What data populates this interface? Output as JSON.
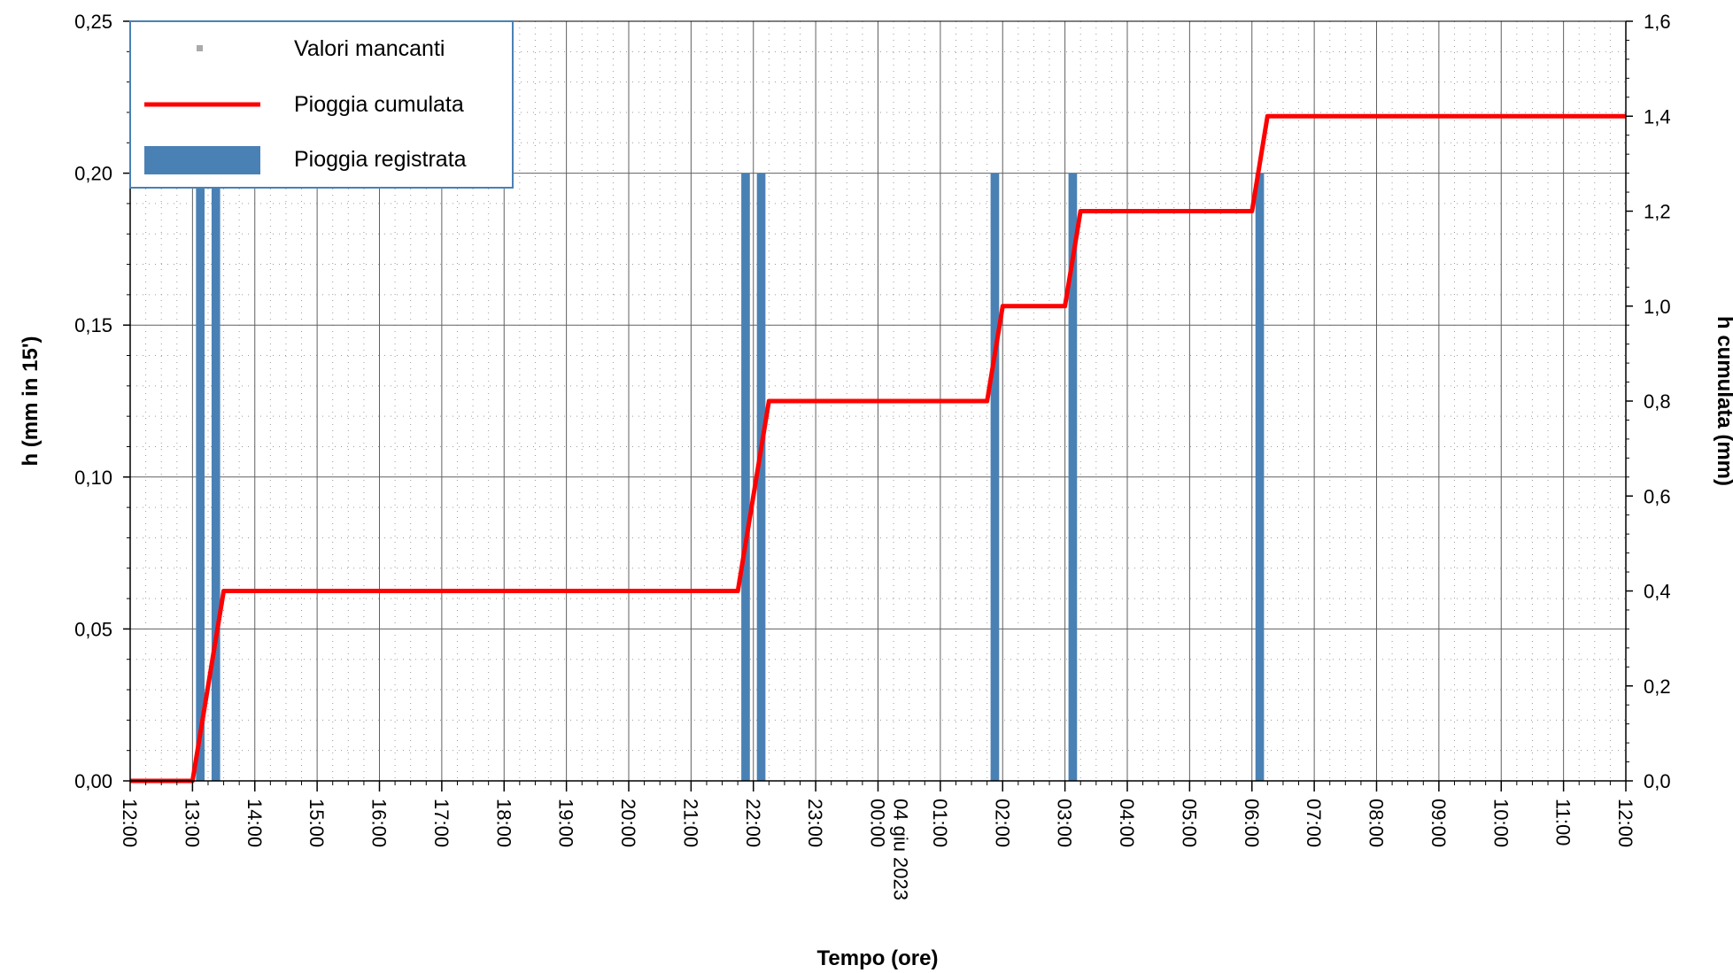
{
  "chart_data": {
    "type": "bar+line",
    "title": "",
    "xlabel": "Tempo (ore)",
    "ylabel_left": "h (mm in 15')",
    "ylabel_right": "h cumulata (mm)",
    "ylim_left": [
      0,
      0.25
    ],
    "ylim_right": [
      0,
      1.6
    ],
    "y_ticks_left": [
      "0,00",
      "0,05",
      "0,10",
      "0,15",
      "0,20",
      "0,25"
    ],
    "y_ticks_right": [
      "0,0",
      "0,2",
      "0,4",
      "0,6",
      "0,8",
      "1,0",
      "1,2",
      "1,4",
      "1,6"
    ],
    "x_tick_labels": [
      "12:00",
      "13:00",
      "14:00",
      "15:00",
      "16:00",
      "17:00",
      "18:00",
      "19:00",
      "20:00",
      "21:00",
      "22:00",
      "23:00",
      "04 giu 2023\n00:00",
      "01:00",
      "02:00",
      "03:00",
      "04:00",
      "05:00",
      "06:00",
      "07:00",
      "08:00",
      "09:00",
      "10:00",
      "11:00",
      "12:00"
    ],
    "x_range_hours": [
      0,
      24
    ],
    "grid": true,
    "legend_position": "top-left",
    "colors": {
      "bars": "#4a81b5",
      "line": "#ff0000",
      "missing": "#aaaaaa"
    },
    "series": [
      {
        "name": "Valori mancanti",
        "kind": "marker",
        "points": []
      },
      {
        "name": "Pioggia cumulata",
        "kind": "line",
        "axis": "right",
        "x_hours": [
          0,
          1,
          1.5,
          9.75,
          10.25,
          12,
          13.75,
          14,
          15,
          15.25,
          18,
          18.25,
          24
        ],
        "y": [
          0,
          0,
          0.4,
          0.4,
          0.8,
          0.8,
          0.8,
          1.0,
          1.0,
          1.2,
          1.2,
          1.4,
          1.4
        ]
      },
      {
        "name": "Pioggia registrata",
        "kind": "bar",
        "axis": "left",
        "x_hours": [
          1.25,
          1.5,
          10,
          10.25,
          14,
          15.25,
          18.25
        ],
        "values": [
          0.2,
          0.2,
          0.2,
          0.2,
          0.2,
          0.2,
          0.2
        ]
      }
    ]
  }
}
